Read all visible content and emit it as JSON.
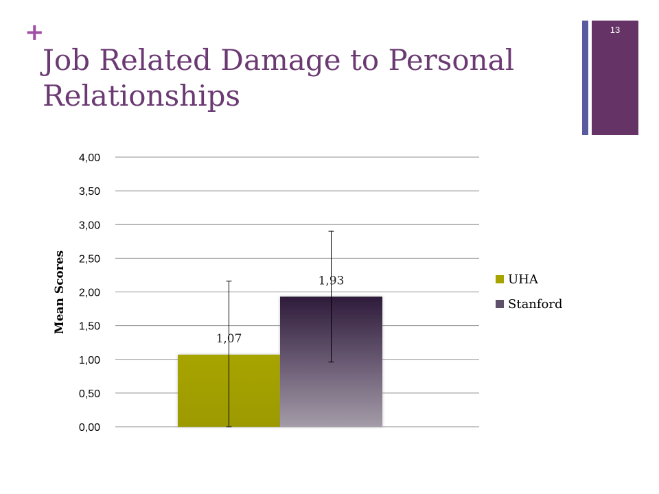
{
  "slide": {
    "title": "Job Related Damage to Personal Relationships",
    "number": "13",
    "plus_icon": "plus-icon",
    "colors": {
      "accent": "#663366",
      "secondary": "#5a5aa0",
      "title": "#6b3a73"
    }
  },
  "chart_data": {
    "type": "bar",
    "title": "",
    "xlabel": "",
    "ylabel": "Mean Scores",
    "ylim": [
      0,
      4
    ],
    "yticks": [
      "0,00",
      "0,50",
      "1,00",
      "1,50",
      "2,00",
      "2,50",
      "3,00",
      "3,50",
      "4,00"
    ],
    "categories": [
      ""
    ],
    "grid": true,
    "legend_position": "right",
    "series": [
      {
        "name": "UHA",
        "values": [
          1.07
        ],
        "label": "1,07",
        "color": "#a2a000",
        "error_low": 0.0,
        "error_high": 2.16
      },
      {
        "name": "Stanford",
        "values": [
          1.93
        ],
        "label": "1,93",
        "color": "#3d2a4a",
        "error_low": 0.96,
        "error_high": 2.9
      }
    ]
  }
}
